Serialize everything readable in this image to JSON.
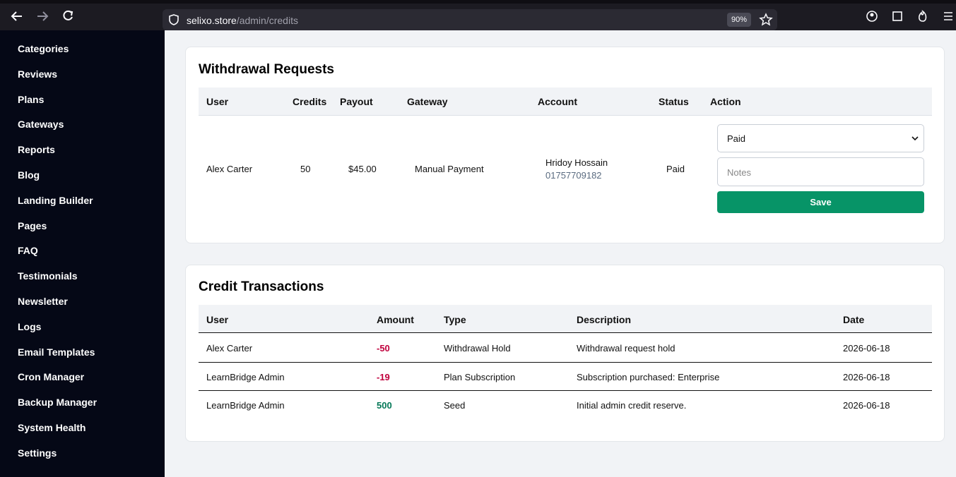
{
  "browser": {
    "url_host": "selixo.store",
    "url_path": "/admin/credits",
    "zoom": "90%"
  },
  "sidebar": {
    "items": [
      "Categories",
      "Reviews",
      "Plans",
      "Gateways",
      "Reports",
      "Blog",
      "Landing Builder",
      "Pages",
      "FAQ",
      "Testimonials",
      "Newsletter",
      "Logs",
      "Email Templates",
      "Cron Manager",
      "Backup Manager",
      "System Health",
      "Settings"
    ]
  },
  "withdrawals": {
    "title": "Withdrawal Requests",
    "columns": [
      "User",
      "Credits",
      "Payout",
      "Gateway",
      "Account",
      "Status",
      "Action"
    ],
    "rows": [
      {
        "user": "Alex Carter",
        "credits": 50,
        "payout": "$45.00",
        "gateway": "Manual Payment",
        "account_name": "Hridoy Hossain",
        "account_number": "01757709182",
        "status": "Paid",
        "action_select": "Paid",
        "notes_placeholder": "Notes",
        "save": "Save"
      }
    ]
  },
  "transactions": {
    "title": "Credit Transactions",
    "columns": [
      "User",
      "Amount",
      "Type",
      "Description",
      "Date"
    ],
    "rows": [
      [
        "Alex Carter",
        -50,
        "Withdrawal Hold",
        "Withdrawal request hold",
        "2026-06-18"
      ],
      [
        "LearnBridge Admin",
        -19,
        "Plan Subscription",
        "Subscription purchased: Enterprise",
        "2026-06-18"
      ],
      [
        "LearnBridge Admin",
        500,
        "Seed",
        "Initial admin credit reserve.",
        "2026-06-18"
      ]
    ]
  }
}
